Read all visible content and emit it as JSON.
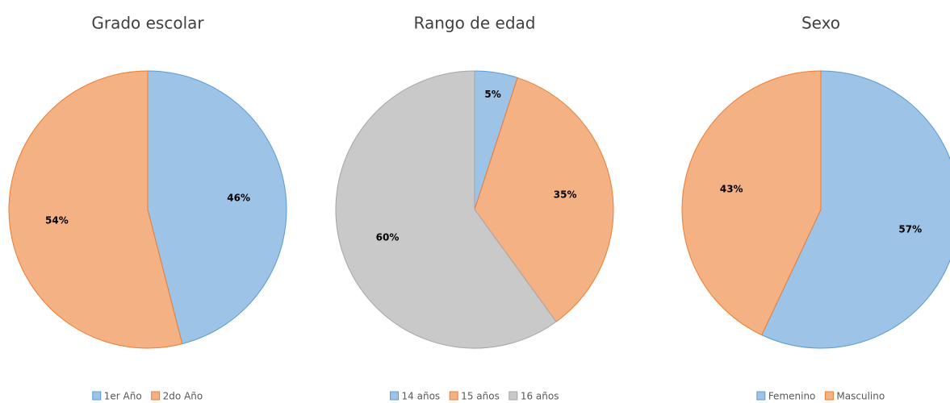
{
  "chart_data": [
    {
      "type": "pie",
      "title": "Grado escolar",
      "categories": [
        "1er Año",
        "2do Año"
      ],
      "values": [
        46,
        54
      ],
      "value_labels": [
        "46%",
        "54%"
      ],
      "colors": [
        "#9dc3e6",
        "#f4b183"
      ]
    },
    {
      "type": "pie",
      "title": "Rango de edad",
      "categories": [
        "14 años",
        "15 años",
        "16 años"
      ],
      "values": [
        5,
        35,
        60
      ],
      "value_labels": [
        "5%",
        "35%",
        "60%"
      ],
      "colors": [
        "#9dc3e6",
        "#f4b183",
        "#c9c9c9"
      ]
    },
    {
      "type": "pie",
      "title": "Sexo",
      "categories": [
        "Femenino",
        "Masculino"
      ],
      "values": [
        57,
        43
      ],
      "value_labels": [
        "57%",
        "43%"
      ],
      "colors": [
        "#9dc3e6",
        "#f4b183"
      ]
    }
  ]
}
